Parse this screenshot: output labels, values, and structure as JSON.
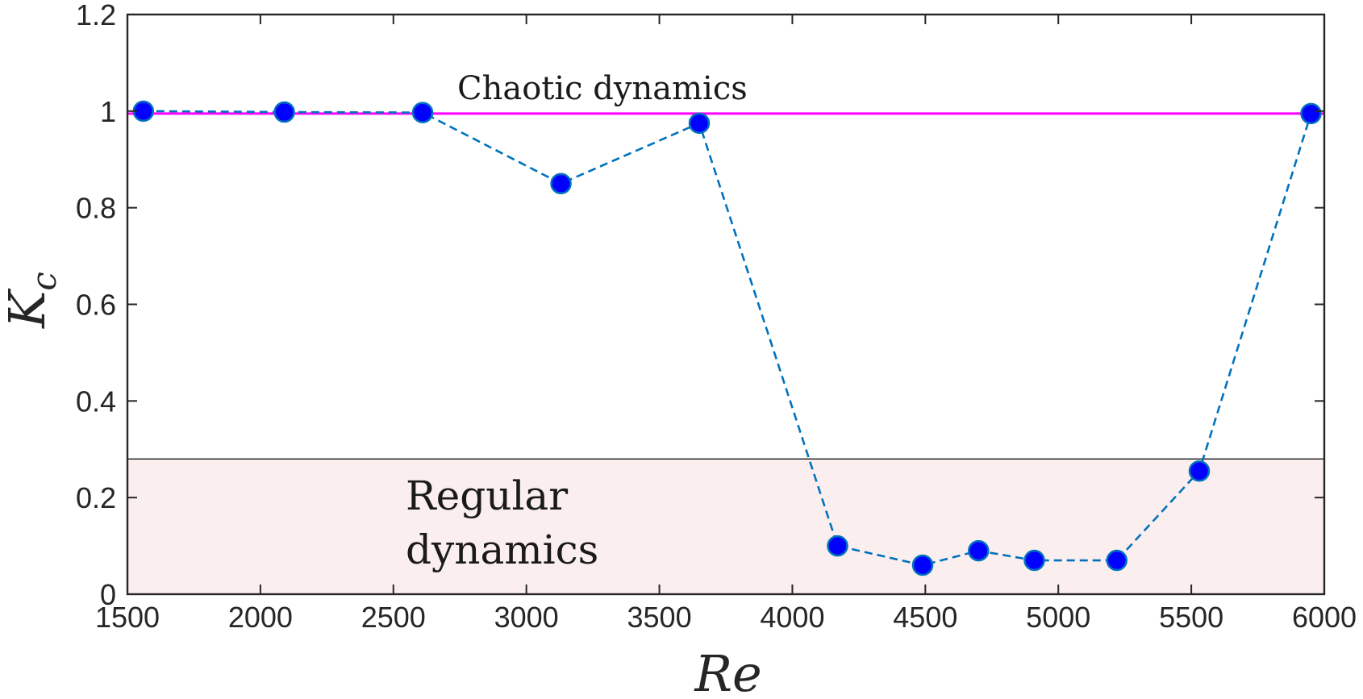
{
  "chart_data": {
    "type": "line",
    "xlabel": "Re",
    "ylabel_main": "K",
    "ylabel_sub": "c",
    "xlim": [
      1500,
      6000
    ],
    "ylim": [
      0,
      1.2
    ],
    "xticks": [
      "1500",
      "2000",
      "2500",
      "3000",
      "3500",
      "4000",
      "4500",
      "5000",
      "5500",
      "6000"
    ],
    "yticks": [
      "0",
      "0.2",
      "0.4",
      "0.6",
      "0.8",
      "1",
      "1.2"
    ],
    "grid": false,
    "series": [
      {
        "name": "Kc",
        "style": "dashed line with filled circle markers",
        "line_color": "#0072BD",
        "marker_color": "#0000FF",
        "x": [
          1560,
          2090,
          2610,
          3130,
          3650,
          4170,
          4490,
          4700,
          4910,
          5220,
          5530,
          5950
        ],
        "y": [
          1.0,
          0.998,
          0.997,
          0.85,
          0.975,
          0.1,
          0.06,
          0.09,
          0.07,
          0.07,
          0.255,
          0.995
        ]
      }
    ],
    "reference_line": {
      "y": 0.995,
      "color": "#FF00FF",
      "label": "Chaotic dynamics"
    },
    "regular_region": {
      "y_from": 0,
      "y_to": 0.28,
      "fill": "#FBEEEE",
      "label_line1": "Regular",
      "label_line2": "dynamics"
    }
  }
}
